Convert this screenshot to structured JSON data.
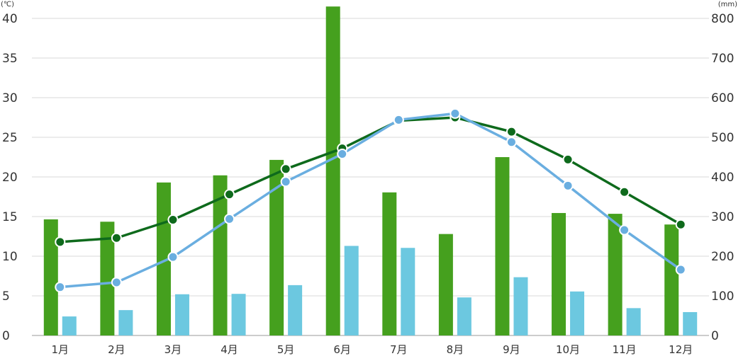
{
  "chart_data": {
    "type": "bar",
    "categories": [
      "1月",
      "2月",
      "3月",
      "4月",
      "5月",
      "6月",
      "7月",
      "8月",
      "9月",
      "10月",
      "11月",
      "12月"
    ],
    "left_axis": {
      "unit": "(℃)",
      "ticks": [
        "0",
        "5",
        "10",
        "15",
        "20",
        "25",
        "30",
        "35",
        "40"
      ],
      "ylim": [
        0,
        40
      ]
    },
    "right_axis": {
      "unit": "(mm)",
      "ticks": [
        "0",
        "100",
        "200",
        "300",
        "400",
        "500",
        "600",
        "700",
        "800"
      ],
      "ylim": [
        0,
        800
      ]
    },
    "bar_series": [
      {
        "color": "#45a01e",
        "axis": "right",
        "values": [
          293,
          287,
          386,
          404,
          443,
          830,
          361,
          256,
          450,
          309,
          307,
          280
        ]
      },
      {
        "color": "#6cc8e0",
        "axis": "right",
        "values": [
          48,
          64,
          104,
          105,
          127,
          226,
          221,
          96,
          147,
          111,
          69,
          59
        ]
      }
    ],
    "line_series": [
      {
        "color": "#0e6a1c",
        "axis": "left",
        "values": [
          11.8,
          12.3,
          14.6,
          17.8,
          21.0,
          23.6,
          27.1,
          27.5,
          25.7,
          22.2,
          18.1,
          14.0
        ]
      },
      {
        "color": "#6aaee0",
        "axis": "left",
        "values": [
          6.1,
          6.7,
          9.9,
          14.7,
          19.4,
          22.9,
          27.2,
          28.0,
          24.4,
          18.9,
          13.3,
          8.3
        ]
      }
    ],
    "grid": true,
    "legend": "none"
  }
}
